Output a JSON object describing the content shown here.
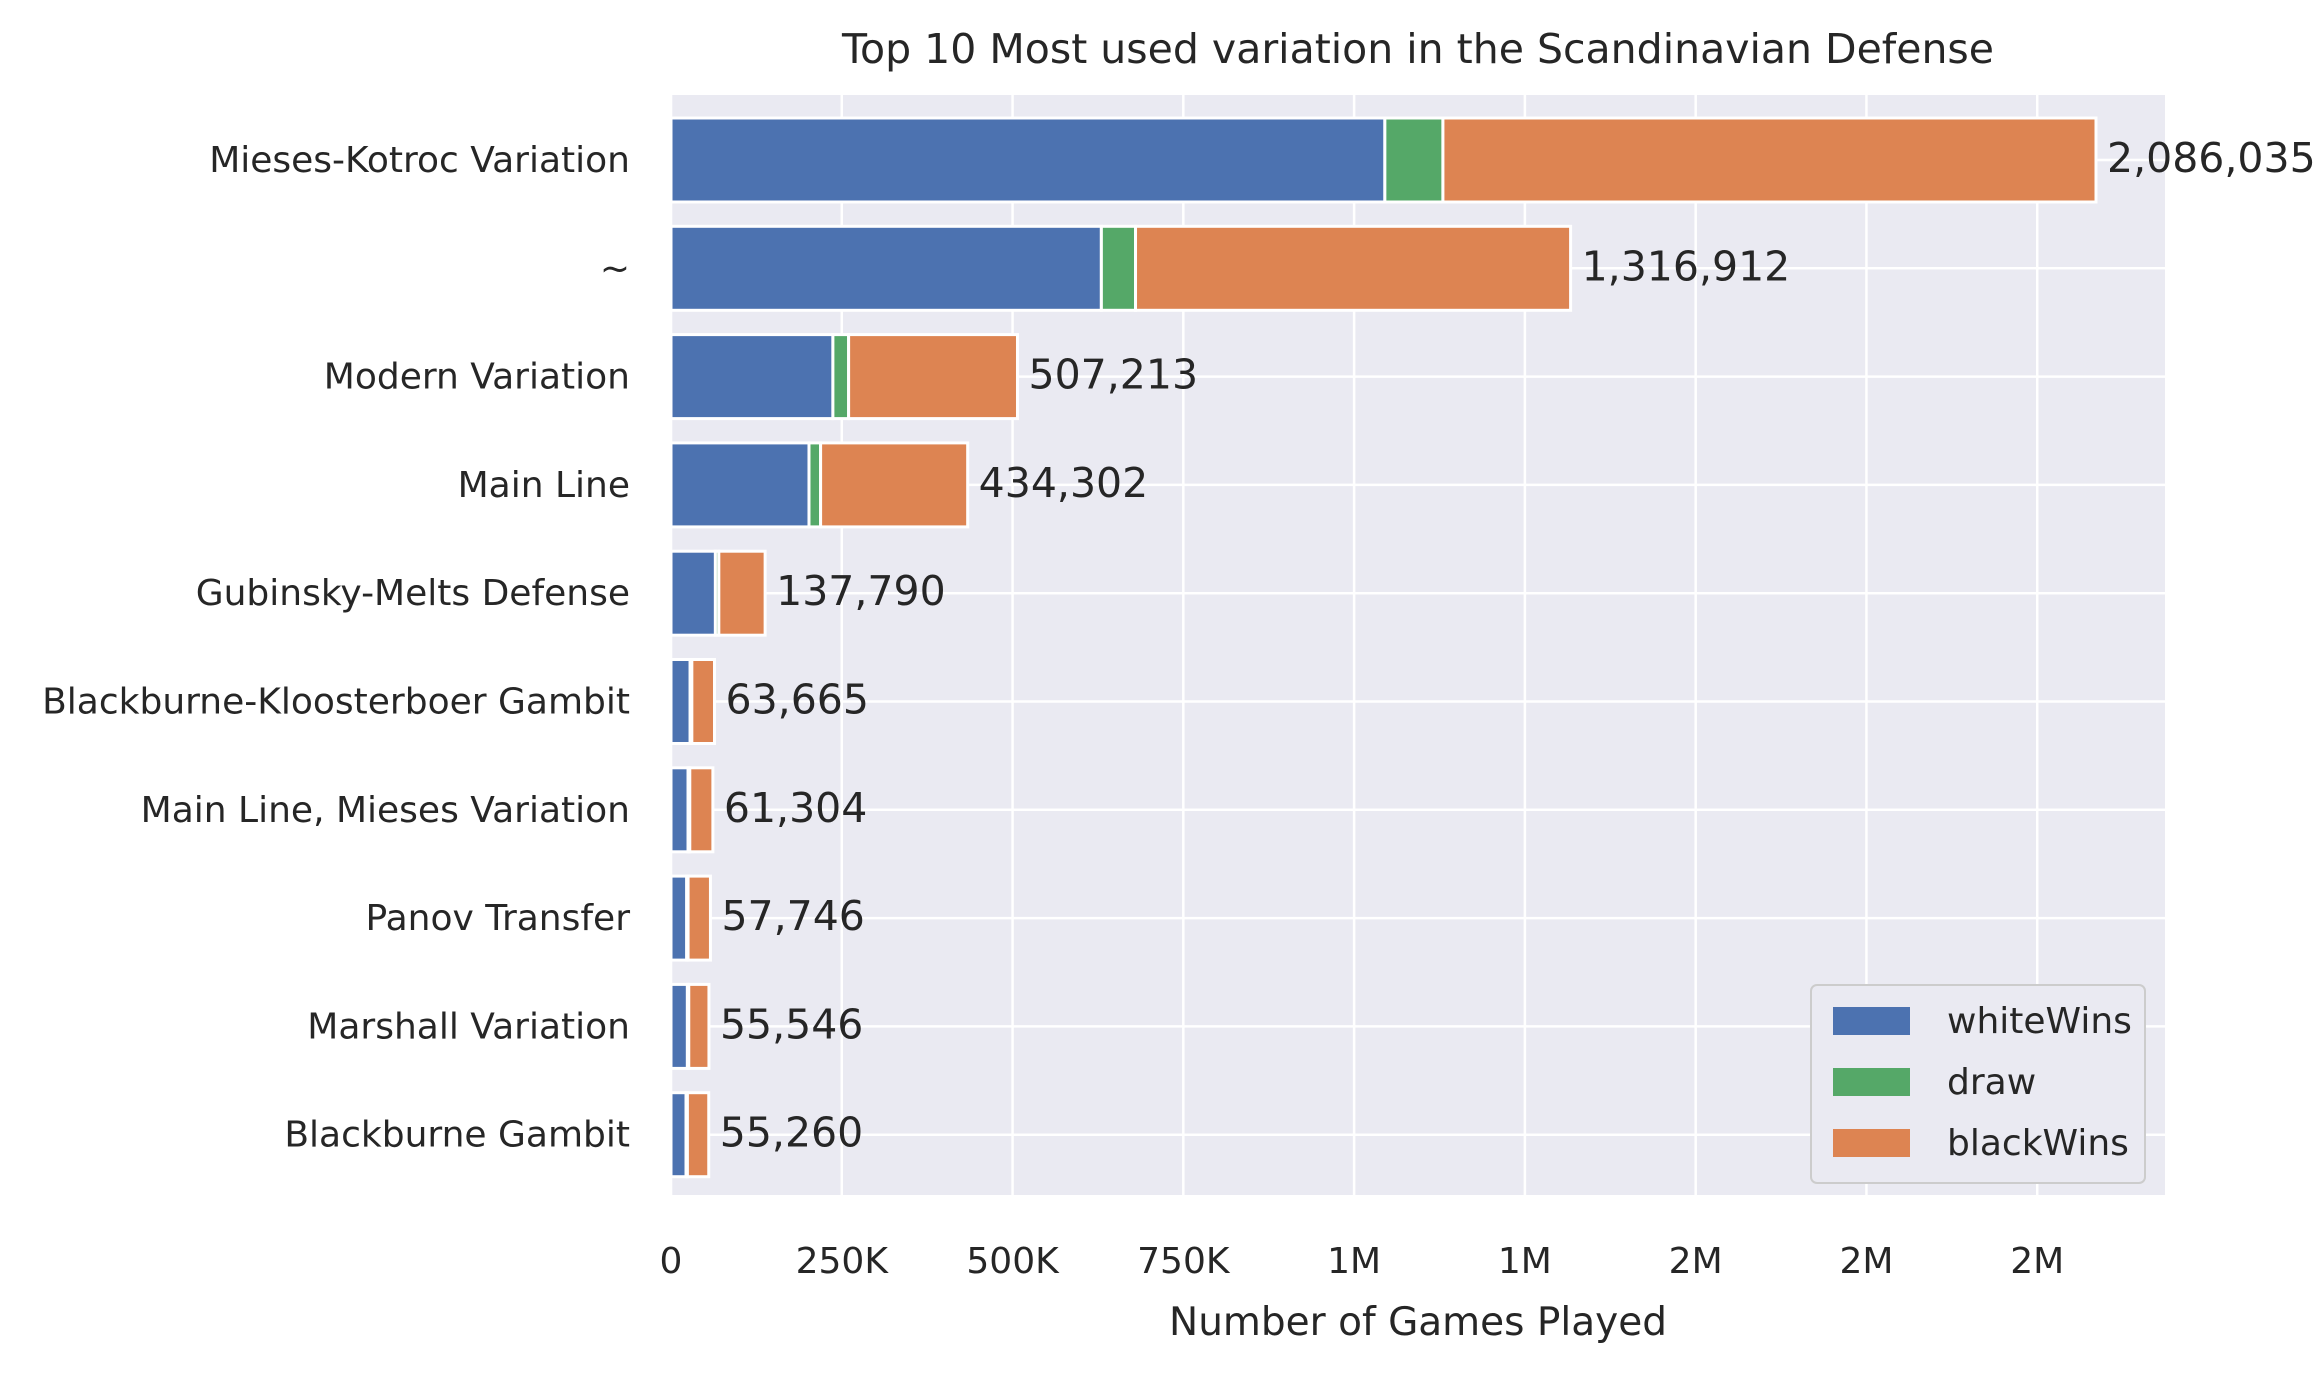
{
  "chart_data": {
    "type": "bar",
    "orientation": "horizontal",
    "stacked": true,
    "title": "Top 10 Most used variation in the Scandinavian Defense",
    "xlabel": "Number of Games Played",
    "ylabel": "",
    "xlim": [
      0,
      2200000
    ],
    "x_ticks": [
      0,
      250000,
      500000,
      750000,
      1000000,
      1250000,
      1500000,
      1750000,
      2000000
    ],
    "x_tick_labels": [
      "0",
      "250K",
      "500K",
      "750K",
      "1M",
      "1M",
      "2M",
      "2M",
      "2M"
    ],
    "grid": true,
    "legend_position": "lower-right",
    "categories": [
      "Mieses-Kotroc Variation",
      "~",
      "Modern Variation",
      "Main Line",
      "Gubinsky-Melts Defense",
      "Blackburne-Kloosterboer Gambit",
      "Main Line, Mieses Variation",
      "Panov Transfer",
      "Marshall Variation",
      "Blackburne Gambit"
    ],
    "series": [
      {
        "name": "whiteWins",
        "color": "#4c72b0",
        "values": [
          1045000,
          630000,
          237000,
          202000,
          65000,
          28000,
          25000,
          23000,
          24000,
          22000
        ]
      },
      {
        "name": "draw",
        "color": "#55a868",
        "values": [
          85000,
          50000,
          23000,
          17000,
          5000,
          2500,
          2500,
          2000,
          2000,
          2000
        ]
      },
      {
        "name": "blackWins",
        "color": "#dd8452",
        "values": [
          956035,
          636912,
          247213,
          215302,
          67790,
          33165,
          33804,
          32746,
          29546,
          31260
        ]
      }
    ],
    "totals": [
      2086035,
      1316912,
      507213,
      434302,
      137790,
      63665,
      61304,
      57746,
      55546,
      55260
    ],
    "total_labels": [
      "2,086,035",
      "1,316,912",
      "507,213",
      "434,302",
      "137,790",
      "63,665",
      "61,304",
      "57,746",
      "55,546",
      "55,260"
    ],
    "colors": {
      "plot_background": "#eaeaf2",
      "grid": "#ffffff",
      "bar_edge": "#ffffff"
    }
  }
}
